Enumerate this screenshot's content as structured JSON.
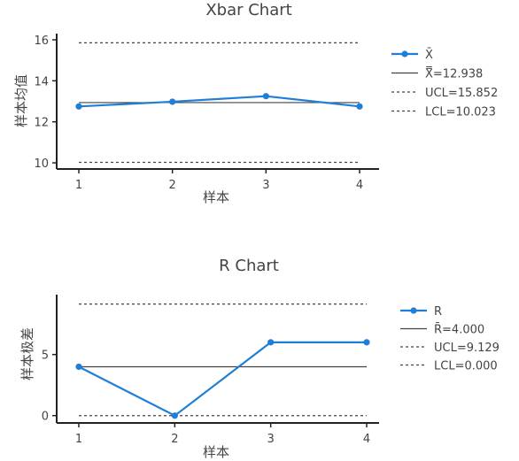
{
  "chart_data": [
    {
      "type": "line",
      "title": "Xbar Chart",
      "xlabel": "样本",
      "ylabel": "样本均值",
      "x": [
        1,
        2,
        3,
        4
      ],
      "x_ticks": [
        "1",
        "2",
        "3",
        "4"
      ],
      "y_ticks": [
        10,
        12,
        14,
        16
      ],
      "y_tick_labels": [
        "10",
        "12",
        "14",
        "16"
      ],
      "ylim": [
        9.7,
        16.3
      ],
      "series": [
        {
          "name": "X̄",
          "values": [
            12.75,
            12.98,
            13.25,
            12.75
          ],
          "style": "solid-markers",
          "color": "#1f7fd6"
        }
      ],
      "center_line": {
        "label": "X̿=12.938",
        "value": 12.938,
        "style": "solid",
        "color": "#444444"
      },
      "ucl": {
        "label": "UCL=15.852",
        "value": 15.852,
        "style": "dashed",
        "color": "#444444"
      },
      "lcl": {
        "label": "LCL=10.023",
        "value": 10.023,
        "style": "dashed",
        "color": "#444444"
      },
      "legend_position": "right",
      "grid": false
    },
    {
      "type": "line",
      "title": "R Chart",
      "xlabel": "样本",
      "ylabel": "样本极差",
      "x": [
        1,
        2,
        3,
        4
      ],
      "x_ticks": [
        "1",
        "2",
        "3",
        "4"
      ],
      "y_ticks": [
        0,
        5
      ],
      "y_tick_labels": [
        "0",
        "5"
      ],
      "ylim": [
        -0.6,
        9.9
      ],
      "series": [
        {
          "name": "R",
          "values": [
            4,
            0,
            6,
            6
          ],
          "style": "solid-markers",
          "color": "#1f7fd6"
        }
      ],
      "center_line": {
        "label": "R̄=4.000",
        "value": 4.0,
        "style": "solid",
        "color": "#444444"
      },
      "ucl": {
        "label": "UCL=9.129",
        "value": 9.129,
        "style": "dashed",
        "color": "#444444"
      },
      "lcl": {
        "label": "LCL=0.000",
        "value": 0.0,
        "style": "dashed",
        "color": "#444444"
      },
      "legend_position": "right",
      "grid": false
    }
  ]
}
